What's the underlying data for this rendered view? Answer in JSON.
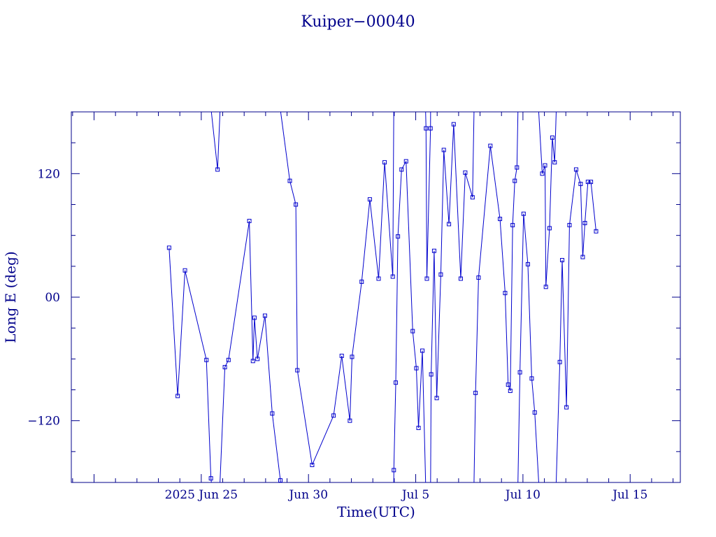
{
  "chart_data": {
    "type": "scatter",
    "title": "Kuiper−00040",
    "xlabel": "Time(UTC)",
    "ylabel": "Long E (deg)",
    "x_unit": "days since 2025-06-25 00:00 UTC",
    "xlim": [
      -6.06,
      22.34
    ],
    "ylim": [
      -180,
      180
    ],
    "x_ticks": [
      {
        "x": 0,
        "label": "2025 Jun 25"
      },
      {
        "x": 5,
        "label": "Jun 30"
      },
      {
        "x": 10,
        "label": "Jul 5"
      },
      {
        "x": 15,
        "label": "Jul 10"
      },
      {
        "x": 20,
        "label": "Jul 15"
      }
    ],
    "y_ticks": [
      {
        "y": -120,
        "label": "−120"
      },
      {
        "y": 0,
        "label": "00"
      },
      {
        "y": 120,
        "label": "120"
      }
    ],
    "grid": false,
    "line_style": "connected markers, wraps at ±180",
    "color": "#0000cd",
    "series": [
      {
        "x": [
          -1.5,
          -1.1,
          -0.76,
          0.24,
          0.45,
          0.76,
          1.1,
          1.27,
          2.24,
          2.41,
          2.48,
          2.62,
          2.97,
          3.31,
          3.69,
          4.13,
          4.41,
          4.48,
          5.17,
          6.17,
          6.55,
          6.93,
          7.03,
          7.48,
          7.86,
          8.27,
          8.55,
          8.93,
          8.98,
          9.07,
          9.17,
          9.34,
          9.55,
          9.86,
          10.03,
          10.13,
          10.31,
          10.48,
          10.52,
          10.69,
          10.72,
          10.86,
          10.98,
          11.17,
          11.31,
          11.55,
          11.77,
          12.1,
          12.31,
          12.65,
          12.79,
          12.93,
          13.48,
          13.93,
          14.17,
          14.31,
          14.41,
          14.52,
          14.62,
          14.72,
          14.86,
          15.03,
          15.23,
          15.41,
          15.55,
          15.9,
          16.03,
          16.07,
          16.24,
          16.37,
          16.48,
          16.72,
          16.83,
          17.03,
          17.17,
          17.48,
          17.69,
          17.79,
          17.89,
          18.03,
          18.17,
          18.41
        ],
        "y": [
          48,
          -96,
          26,
          -61,
          -176,
          124,
          -68,
          -61,
          74,
          -62,
          -20,
          -60,
          -18,
          -113,
          -178,
          113,
          90,
          -71,
          -163,
          -115,
          -57,
          -120,
          -58,
          15,
          95,
          18,
          131,
          20,
          -168,
          -83,
          59,
          124,
          132,
          -33,
          -69,
          -127,
          -52,
          164,
          18,
          164,
          -75,
          45,
          -98,
          22,
          143,
          71,
          168,
          18,
          121,
          97,
          -93,
          19,
          147,
          76,
          4,
          -85,
          -91,
          70,
          113,
          126,
          -73,
          81,
          32,
          -79,
          -112,
          120,
          128,
          10,
          67,
          155,
          131,
          -63,
          36,
          -107,
          70,
          124,
          110,
          39,
          72,
          112,
          112,
          64
        ],
        "x_left": [
          -1.5,
          -1.1,
          -0.76,
          0.24,
          0.45,
          0.76,
          1.1,
          1.27,
          2.24,
          2.41,
          2.48,
          2.62,
          2.97,
          3.31,
          3.69,
          4.13,
          4.41,
          4.48,
          5.17,
          6.17,
          6.55,
          6.93,
          7.03,
          7.48,
          7.86,
          8.27,
          8.55,
          8.93,
          8.98,
          9.07,
          9.17,
          9.34,
          9.55,
          9.86,
          10.03,
          10.13,
          10.31,
          10.48,
          10.52,
          10.69,
          10.72,
          10.86,
          10.98,
          11.17,
          11.31,
          11.55,
          11.77,
          12.1,
          12.31,
          12.65,
          12.79,
          12.93,
          13.48,
          13.93,
          14.17,
          14.31,
          14.41,
          14.52,
          14.62,
          14.72,
          14.86,
          15.03,
          15.23,
          15.41,
          15.55,
          15.9,
          16.03,
          16.07,
          16.24,
          16.37,
          16.48,
          16.72,
          16.83,
          17.03,
          17.17,
          17.48,
          17.69,
          17.79,
          17.89,
          18.03,
          18.17,
          18.41
        ]
      }
    ]
  }
}
